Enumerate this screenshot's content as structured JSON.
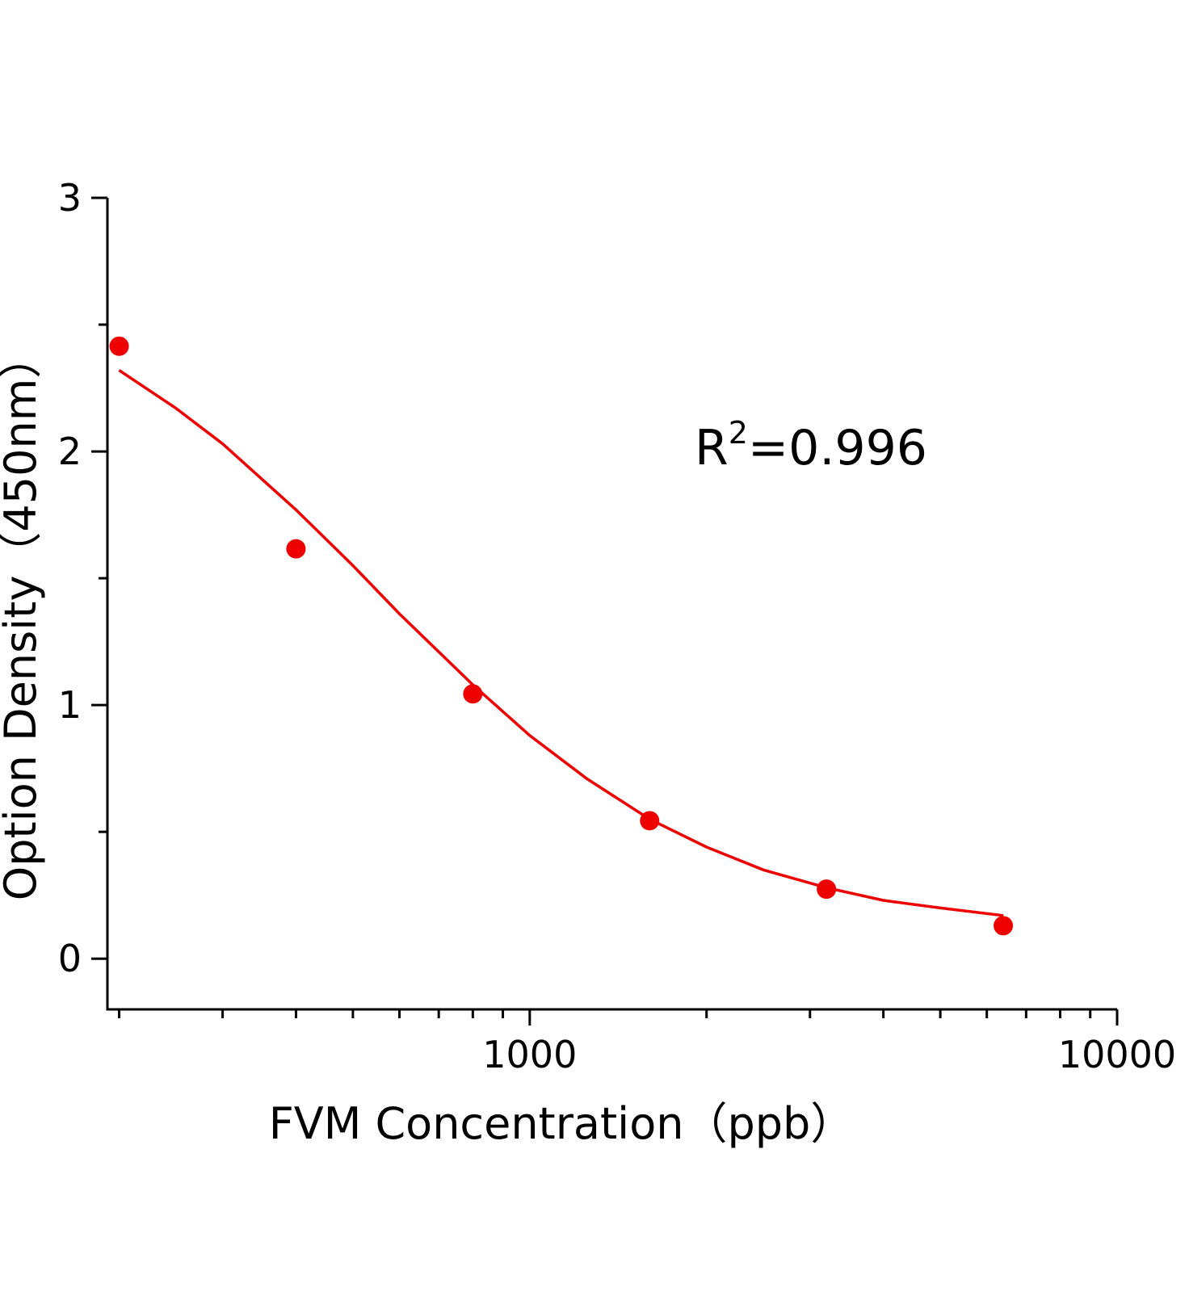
{
  "chart_data": {
    "type": "scatter",
    "xlabel": "FVM Concentration（ppb）",
    "ylabel": "Option Density（450nm）",
    "annotation": {
      "base": "R",
      "superscript": "2",
      "rest": "=0.996"
    },
    "x": [
      200,
      400,
      800,
      1600,
      3200,
      6400
    ],
    "values": [
      2.415,
      1.616,
      1.044,
      0.544,
      0.274,
      0.13
    ],
    "color": "#ee0000",
    "fit_curve": {
      "x": [
        200,
        250,
        300,
        400,
        500,
        600,
        800,
        1000,
        1250,
        1600,
        2000,
        2500,
        3200,
        4000,
        5000,
        6400
      ],
      "values": [
        2.32,
        2.17,
        2.03,
        1.77,
        1.55,
        1.36,
        1.08,
        0.88,
        0.71,
        0.55,
        0.44,
        0.35,
        0.28,
        0.23,
        0.2,
        0.17
      ]
    },
    "xlog": true,
    "xlim": [
      191,
      10000
    ],
    "xticks": [
      1000,
      10000
    ],
    "xminor_ticks": [
      200,
      300,
      400,
      500,
      600,
      700,
      800,
      900,
      2000,
      3000,
      4000,
      5000,
      6000,
      7000,
      8000,
      9000
    ],
    "ylim": [
      -0.2,
      3
    ],
    "yticks": [
      0,
      1,
      2,
      3
    ],
    "yminor_ticks": [
      0.5,
      1.5,
      2.5
    ]
  }
}
